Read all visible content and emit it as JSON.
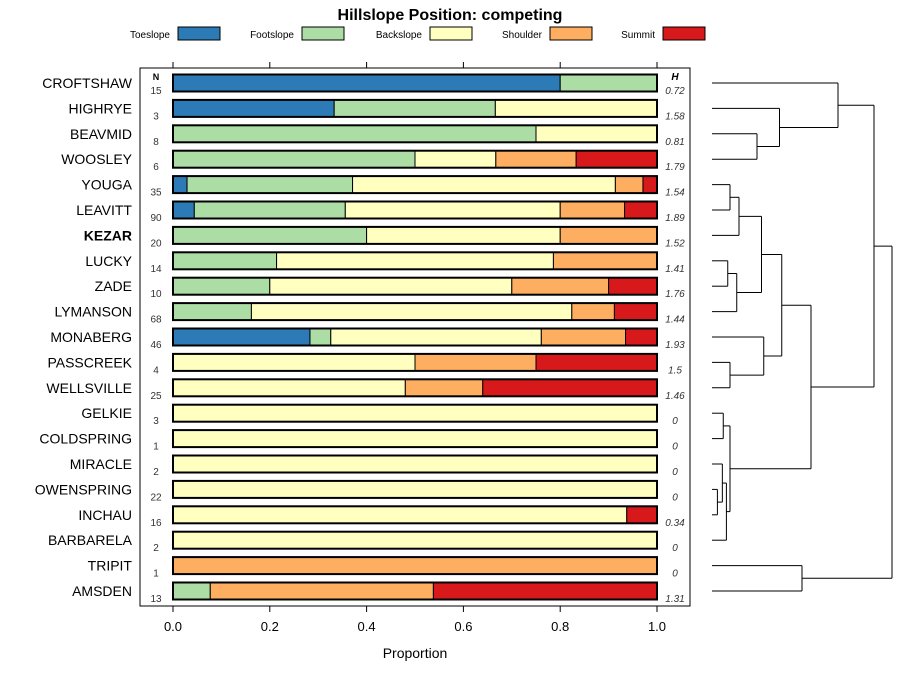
{
  "chart_data": {
    "type": "bar",
    "subtype": "stacked-horizontal-proportion-with-dendrogram",
    "title": "Hillslope Position: competing",
    "xlabel": "Proportion",
    "ylabel": "",
    "xlim": [
      0,
      1
    ],
    "x_ticks": [
      "0.0",
      "0.2",
      "0.4",
      "0.6",
      "0.8",
      "1.0"
    ],
    "x_tick_values": [
      0,
      0.2,
      0.4,
      0.6,
      0.8,
      1.0
    ],
    "legend_position": "top",
    "n_header": "N",
    "h_header": "H",
    "highlighted_category": "KEZAR",
    "legend": [
      {
        "name": "Toeslope",
        "color": "#2C7BB6"
      },
      {
        "name": "Footslope",
        "color": "#ABDDA4"
      },
      {
        "name": "Backslope",
        "color": "#FFFFBF"
      },
      {
        "name": "Shoulder",
        "color": "#FDAE61"
      },
      {
        "name": "Summit",
        "color": "#D7191C"
      }
    ],
    "categories": [
      "CROFTSHAW",
      "HIGHRYE",
      "BEAVMID",
      "WOOSLEY",
      "YOUGA",
      "LEAVITT",
      "KEZAR",
      "LUCKY",
      "ZADE",
      "LYMANSON",
      "MONABERG",
      "PASSCREEK",
      "WELLSVILLE",
      "GELKIE",
      "COLDSPRING",
      "MIRACLE",
      "OWENSPRING",
      "INCHAU",
      "BARBARELA",
      "TRIPIT",
      "AMSDEN"
    ],
    "n": [
      "15",
      "3",
      "8",
      "6",
      "35",
      "90",
      "20",
      "14",
      "10",
      "68",
      "46",
      "4",
      "25",
      "3",
      "1",
      "2",
      "22",
      "16",
      "2",
      "1",
      "13"
    ],
    "h": [
      "0.72",
      "1.58",
      "0.81",
      "1.79",
      "1.54",
      "1.89",
      "1.52",
      "1.41",
      "1.76",
      "1.44",
      "1.93",
      "1.5",
      "1.46",
      "0",
      "0",
      "0",
      "0",
      "0.34",
      "0",
      "0",
      "1.31"
    ],
    "series": [
      {
        "name": "Toeslope",
        "values": [
          0.8,
          0.333,
          0,
          0,
          0.029,
          0.044,
          0,
          0,
          0,
          0,
          0.283,
          0,
          0,
          0,
          0,
          0,
          0,
          0,
          0,
          0,
          0
        ]
      },
      {
        "name": "Footslope",
        "values": [
          0.2,
          0.333,
          0.75,
          0.5,
          0.342,
          0.312,
          0.4,
          0.214,
          0.2,
          0.162,
          0.043,
          0,
          0,
          0,
          0,
          0,
          0,
          0,
          0,
          0,
          0.077
        ]
      },
      {
        "name": "Backslope",
        "values": [
          0,
          0.334,
          0.25,
          0.167,
          0.543,
          0.444,
          0.4,
          0.572,
          0.5,
          0.662,
          0.435,
          0.5,
          0.48,
          1,
          1,
          1,
          1,
          0.9375,
          1,
          0,
          0
        ]
      },
      {
        "name": "Shoulder",
        "values": [
          0,
          0,
          0,
          0.166,
          0.057,
          0.133,
          0.2,
          0.214,
          0.2,
          0.088,
          0.174,
          0.25,
          0.16,
          0,
          0,
          0,
          0,
          0,
          0,
          1,
          0.461
        ]
      },
      {
        "name": "Summit",
        "values": [
          0,
          0,
          0,
          0.167,
          0.029,
          0.067,
          0,
          0,
          0.1,
          0.088,
          0.065,
          0.25,
          0.36,
          0,
          0,
          0,
          0,
          0.0625,
          0,
          0,
          0.462
        ]
      }
    ],
    "dendrogram": {
      "orientation": "leaves-left",
      "merges": [
        {
          "id": "m1",
          "children": [
            "BEAVMID",
            "WOOSLEY"
          ],
          "height": 0.1
        },
        {
          "id": "m2",
          "children": [
            "HIGHRYE",
            "m1"
          ],
          "height": 0.15
        },
        {
          "id": "m3",
          "children": [
            "CROFTSHAW",
            "m2"
          ],
          "height": 0.28
        },
        {
          "id": "m4",
          "children": [
            "YOUGA",
            "LEAVITT"
          ],
          "height": 0.04
        },
        {
          "id": "m5",
          "children": [
            "m4",
            "KEZAR"
          ],
          "height": 0.06
        },
        {
          "id": "m6",
          "children": [
            "LUCKY",
            "ZADE"
          ],
          "height": 0.035
        },
        {
          "id": "m7",
          "children": [
            "m6",
            "LYMANSON"
          ],
          "height": 0.055
        },
        {
          "id": "m8",
          "children": [
            "m5",
            "m7"
          ],
          "height": 0.11
        },
        {
          "id": "m9",
          "children": [
            "PASSCREEK",
            "WELLSVILLE"
          ],
          "height": 0.04
        },
        {
          "id": "m10",
          "children": [
            "MONABERG",
            "m9"
          ],
          "height": 0.115
        },
        {
          "id": "m11",
          "children": [
            "m8",
            "m10"
          ],
          "height": 0.155
        },
        {
          "id": "m12",
          "children": [
            "GELKIE",
            "COLDSPRING"
          ],
          "height": 0.025
        },
        {
          "id": "m13",
          "children": [
            "OWENSPRING",
            "INCHAU"
          ],
          "height": 0.012
        },
        {
          "id": "m14",
          "children": [
            "MIRACLE",
            "m13"
          ],
          "height": 0.023
        },
        {
          "id": "m15",
          "children": [
            "m14",
            "BARBARELA"
          ],
          "height": 0.032
        },
        {
          "id": "m16",
          "children": [
            "m12",
            "m15"
          ],
          "height": 0.04
        },
        {
          "id": "m17",
          "children": [
            "m11",
            "m16"
          ],
          "height": 0.22
        },
        {
          "id": "m18",
          "children": [
            "m3",
            "m17"
          ],
          "height": 0.36
        },
        {
          "id": "m19",
          "children": [
            "TRIPIT",
            "AMSDEN"
          ],
          "height": 0.2
        },
        {
          "id": "m20",
          "children": [
            "m18",
            "m19"
          ],
          "height": 0.4
        }
      ]
    }
  }
}
